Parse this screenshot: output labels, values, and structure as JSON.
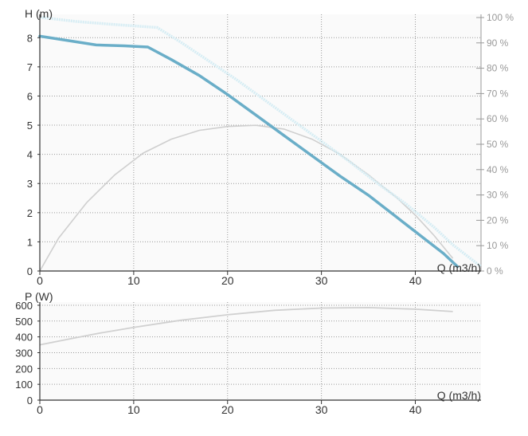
{
  "chart_data": [
    {
      "type": "line",
      "title": "",
      "ylabel": "H (m)",
      "xlabel": "Q (m3/h)",
      "xlim": [
        0,
        47
      ],
      "ylim": [
        0,
        8.8
      ],
      "x_ticks": [
        0,
        10,
        20,
        30,
        40
      ],
      "y_ticks": [
        0,
        1,
        2,
        3,
        4,
        5,
        6,
        7,
        8
      ],
      "y2_ticks": [
        "0 %",
        "10 %",
        "20 %",
        "30 %",
        "40 %",
        "50 %",
        "60 %",
        "70 %",
        "80 %",
        "90 %",
        "100 %"
      ],
      "y2lim": [
        0,
        100
      ],
      "grid": true,
      "colors": {
        "head_curve": "#6aaec8",
        "max_head_curve": "#d6edf4",
        "efficiency_curve": "#cfcfcf",
        "grid": "#999999",
        "axis": "#333333",
        "right_axis": "#999999"
      },
      "series": [
        {
          "values": [
            [
              0,
              8.05
            ],
            [
              3,
              7.9
            ],
            [
              6,
              7.75
            ],
            [
              9,
              7.72
            ],
            [
              11.5,
              7.68
            ],
            [
              14,
              7.25
            ],
            [
              17,
              6.7
            ],
            [
              20,
              6.05
            ],
            [
              23,
              5.35
            ],
            [
              26,
              4.65
            ],
            [
              29,
              3.95
            ],
            [
              32,
              3.25
            ],
            [
              35,
              2.6
            ],
            [
              38,
              1.85
            ],
            [
              41,
              1.1
            ],
            [
              43,
              0.6
            ],
            [
              44.5,
              0.15
            ]
          ]
        },
        {
          "values": [
            [
              0,
              8.7
            ],
            [
              4,
              8.55
            ],
            [
              8,
              8.45
            ],
            [
              12.5,
              8.35
            ],
            [
              15,
              7.85
            ],
            [
              18,
              7.2
            ],
            [
              21,
              6.55
            ],
            [
              24,
              5.85
            ],
            [
              27,
              5.15
            ],
            [
              30,
              4.45
            ],
            [
              33,
              3.75
            ],
            [
              36,
              3.0
            ],
            [
              39,
              2.3
            ],
            [
              42,
              1.5
            ],
            [
              44,
              0.9
            ],
            [
              46,
              0.4
            ],
            [
              47,
              0.15
            ]
          ]
        },
        {
          "axis": "right",
          "values": [
            [
              0,
              0
            ],
            [
              2,
              13
            ],
            [
              5,
              27
            ],
            [
              8,
              38
            ],
            [
              11,
              46.5
            ],
            [
              14,
              52
            ],
            [
              17,
              55.5
            ],
            [
              20,
              57
            ],
            [
              23,
              57.5
            ],
            [
              26,
              56
            ],
            [
              29,
              52
            ],
            [
              32,
              46
            ],
            [
              35,
              38
            ],
            [
              38,
              29
            ],
            [
              40,
              22
            ],
            [
              42,
              14
            ],
            [
              44,
              5
            ]
          ]
        }
      ]
    },
    {
      "type": "line",
      "title": "",
      "ylabel": "P (W)",
      "xlabel": "Q (m3/h)",
      "xlim": [
        0,
        47
      ],
      "ylim": [
        0,
        620
      ],
      "x_ticks": [
        0,
        10,
        20,
        30,
        40
      ],
      "y_ticks": [
        0,
        100,
        200,
        300,
        400,
        500,
        600
      ],
      "grid": true,
      "colors": {
        "power_curve": "#d0d0d0",
        "grid": "#999999",
        "axis": "#333333"
      },
      "series": [
        {
          "values": [
            [
              0,
              350
            ],
            [
              3,
              385
            ],
            [
              6,
              420
            ],
            [
              10,
              460
            ],
            [
              15,
              505
            ],
            [
              20,
              540
            ],
            [
              25,
              568
            ],
            [
              30,
              582
            ],
            [
              35,
              585
            ],
            [
              40,
              575
            ],
            [
              44,
              560
            ]
          ]
        }
      ]
    }
  ]
}
